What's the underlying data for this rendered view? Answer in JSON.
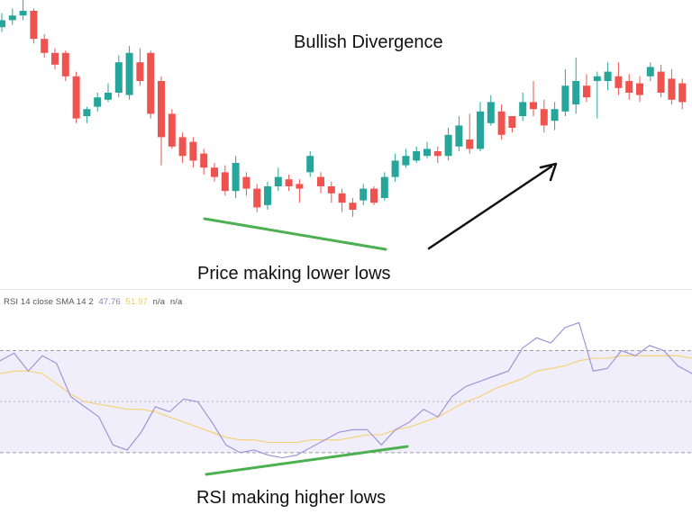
{
  "colors": {
    "up": "#26a69a",
    "down": "#ef5350",
    "rsi_line": "#9c8cd6",
    "sma_line": "#f5d06f",
    "rsi_band": "#f0eefb",
    "dashed_levels": "#9a9aa8",
    "middle_level": "#b4b4c0",
    "price_trendline": "#4caf50",
    "rsi_trendline": "#4caf50",
    "arrow": "#111111"
  },
  "texts": {
    "title": "Bullish Divergence",
    "price_caption": "Price making lower lows",
    "rsi_caption": "RSI making higher lows"
  },
  "indicator_legend": {
    "name": "RSI 14 close SMA 14 2",
    "rsi_value": "47.76",
    "sma_value": "51.97",
    "na1": "n/a",
    "na2": "n/a"
  },
  "chart_data": [
    {
      "type": "candlestick",
      "title": "Bullish Divergence",
      "annotation": "Price making lower lows",
      "scale": "price units are relative (0 = lowest low shown, 100 = highest high shown)",
      "ylim": [
        0,
        100
      ],
      "bullish": [
        true,
        true,
        true,
        false,
        false,
        false,
        false,
        false,
        true,
        true,
        true,
        true,
        true,
        false,
        false,
        false,
        false,
        false,
        false,
        false,
        false,
        false,
        true,
        false,
        false,
        true,
        true,
        false,
        false,
        true,
        false,
        false,
        false,
        false,
        true,
        false,
        true,
        true,
        true,
        true,
        true,
        false,
        true,
        true,
        false,
        true,
        true,
        false,
        false,
        true,
        false,
        false,
        true,
        true,
        true,
        false,
        true,
        true,
        false,
        false,
        false,
        true,
        false,
        false,
        false
      ],
      "open": [
        93,
        96,
        98,
        100,
        88,
        82,
        82,
        72,
        55,
        59,
        62,
        65,
        64,
        78,
        82,
        70,
        56,
        46,
        44,
        39,
        33,
        31,
        23,
        29,
        24,
        17,
        25,
        28,
        26,
        31,
        29,
        25,
        22,
        18,
        19,
        24,
        20,
        29,
        34,
        36,
        38,
        40,
        38,
        42,
        45,
        41,
        52,
        57,
        55,
        55,
        61,
        58,
        53,
        57,
        60,
        68,
        70,
        70,
        72,
        70,
        69,
        72,
        74,
        71,
        69
      ],
      "close": [
        96,
        98,
        100,
        88,
        82,
        77,
        72,
        54,
        58,
        63,
        65,
        78,
        82,
        70,
        56,
        46,
        42,
        38,
        36,
        33,
        29,
        23,
        35,
        24,
        16,
        25,
        29,
        25,
        24,
        38,
        25,
        22,
        18,
        15,
        24,
        18,
        29,
        36,
        38,
        40,
        41,
        38,
        47,
        51,
        41,
        57,
        61,
        47,
        50,
        61,
        58,
        51,
        58,
        68,
        70,
        63,
        72,
        74,
        67,
        65,
        64,
        76,
        65,
        62,
        61
      ],
      "high": [
        99,
        101,
        106,
        101,
        90,
        84,
        83,
        74,
        59,
        65,
        69,
        81,
        85,
        84,
        83,
        72,
        58,
        48,
        46,
        41,
        35,
        34,
        38,
        31,
        26,
        27,
        33,
        30,
        28,
        40,
        31,
        27,
        24,
        20,
        26,
        25,
        31,
        39,
        41,
        42,
        44,
        42,
        50,
        55,
        56,
        61,
        64,
        60,
        54,
        65,
        70,
        62,
        61,
        75,
        80,
        73,
        74,
        78,
        78,
        73,
        72,
        78,
        77,
        75,
        71
      ],
      "low": [
        91,
        94,
        96,
        86,
        80,
        75,
        70,
        52,
        52,
        57,
        61,
        63,
        62,
        68,
        54,
        34,
        41,
        35,
        33,
        30,
        27,
        21,
        20,
        21,
        14,
        15,
        23,
        23,
        18,
        29,
        22,
        18,
        14,
        12,
        17,
        17,
        19,
        27,
        33,
        35,
        37,
        35,
        36,
        40,
        39,
        40,
        51,
        45,
        48,
        53,
        55,
        48,
        49,
        55,
        56,
        61,
        54,
        66,
        64,
        62,
        61,
        70,
        63,
        60,
        58
      ]
    },
    {
      "type": "line",
      "title": "RSI 14 close SMA 14 2",
      "annotation": "RSI making higher lows",
      "levels": [
        70,
        50,
        30
      ],
      "ylim": [
        25,
        85
      ],
      "series": [
        {
          "name": "RSI 14 close",
          "values": [
            66,
            69,
            62,
            68,
            65,
            52,
            48,
            44,
            33,
            31,
            38,
            48,
            46,
            51,
            50,
            42,
            33,
            30,
            31,
            29,
            28,
            29,
            32,
            35,
            38,
            39,
            39,
            33,
            39,
            42,
            47,
            44,
            52,
            56,
            58,
            60,
            62,
            71,
            75,
            73,
            79,
            81,
            62,
            63,
            70,
            68,
            72,
            70,
            64,
            61
          ]
        },
        {
          "name": "SMA 14",
          "values": [
            61,
            62,
            62,
            61,
            57,
            53,
            50,
            49,
            48,
            47,
            47,
            46,
            44,
            42,
            40,
            38,
            36,
            35,
            35,
            34,
            34,
            34,
            35,
            35,
            35,
            36,
            37,
            37,
            39,
            40,
            42,
            44,
            47,
            50,
            52,
            55,
            57,
            59,
            62,
            63,
            64,
            66,
            67,
            67,
            68,
            68,
            68,
            68,
            68,
            67
          ]
        }
      ]
    }
  ]
}
